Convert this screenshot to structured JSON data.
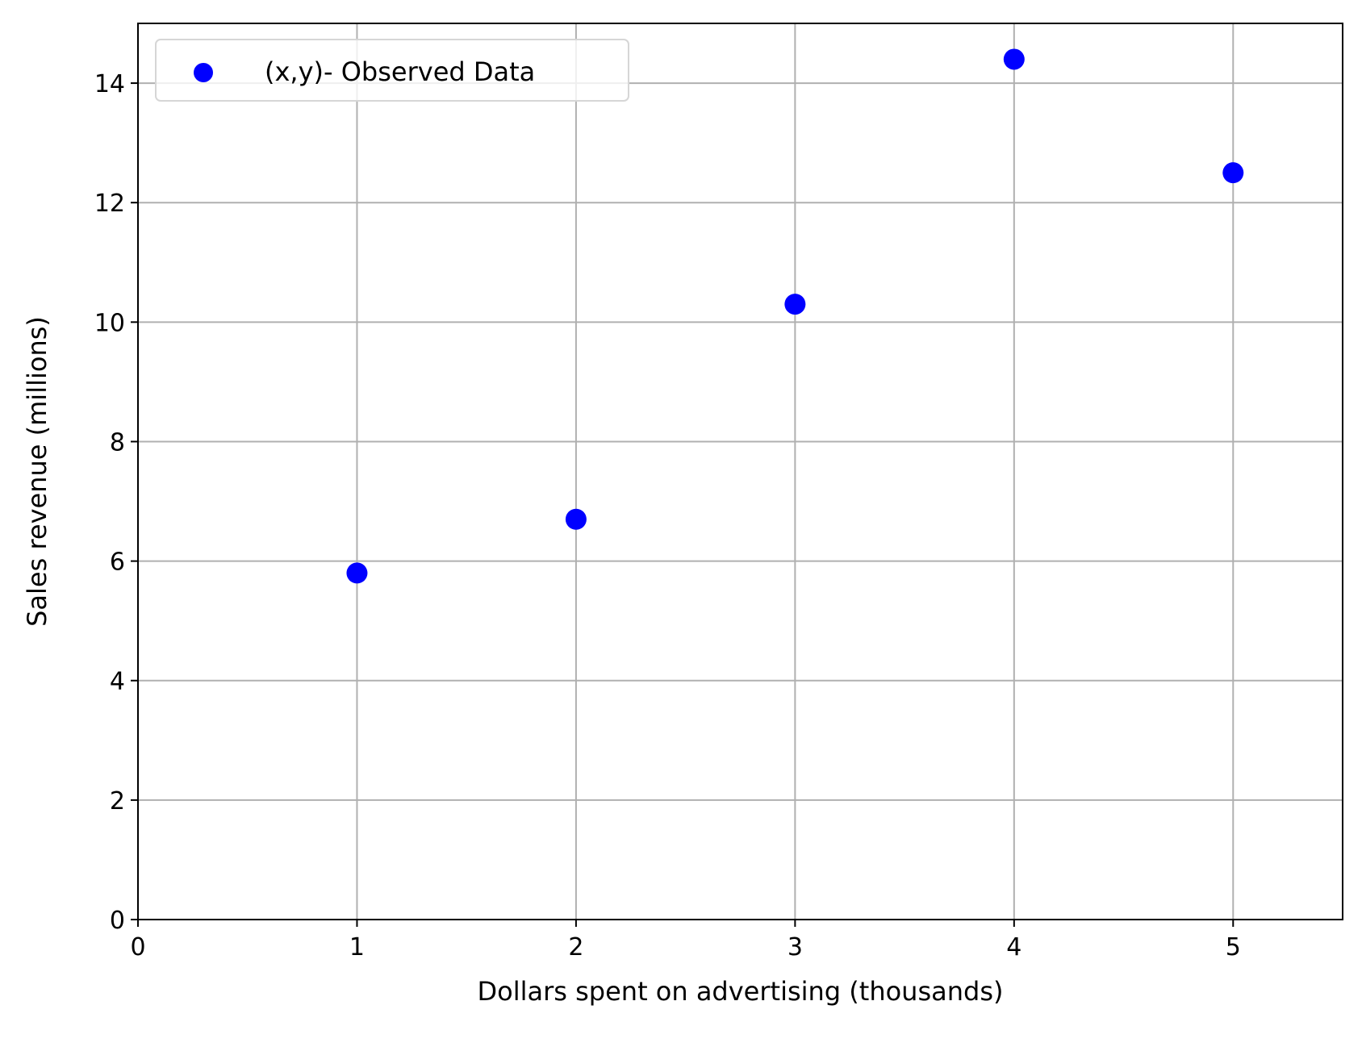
{
  "chart_data": {
    "type": "scatter",
    "title": "",
    "xlabel": "Dollars spent on advertising (thousands)",
    "ylabel": "Sales revenue (millions)",
    "xlim": [
      0,
      5.5
    ],
    "ylim": [
      0,
      15
    ],
    "xticks": [
      0,
      1,
      2,
      3,
      4,
      5
    ],
    "yticks": [
      0,
      2,
      4,
      6,
      8,
      10,
      12,
      14
    ],
    "grid": true,
    "legend_position": "top-left",
    "series": [
      {
        "name": "(x,y)- Observed Data",
        "color": "#0000ff",
        "x": [
          1,
          2,
          3,
          4,
          5
        ],
        "y": [
          5.8,
          6.7,
          10.3,
          14.4,
          12.5
        ]
      }
    ]
  }
}
